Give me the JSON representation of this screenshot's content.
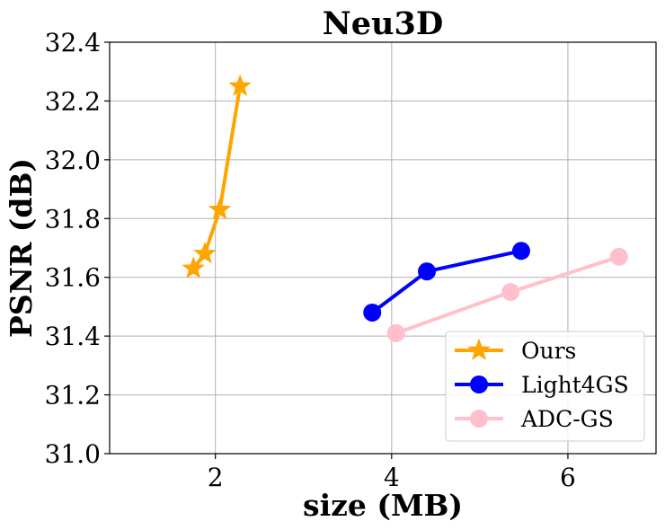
{
  "chart_data": {
    "type": "line",
    "title": "Neu3D",
    "xlabel": "size (MB)",
    "ylabel": "PSNR (dB)",
    "xlim": [
      0.8,
      7.0
    ],
    "ylim": [
      31.0,
      32.4
    ],
    "xticks": [
      2,
      4,
      6
    ],
    "xtick_labels": [
      "2",
      "4",
      "6"
    ],
    "yticks": [
      31.0,
      31.2,
      31.4,
      31.6,
      31.8,
      32.0,
      32.2,
      32.4
    ],
    "ytick_labels": [
      "31.0",
      "31.2",
      "31.4",
      "31.6",
      "31.8",
      "32.0",
      "32.2",
      "32.4"
    ],
    "grid": true,
    "legend_position": "lower-right",
    "series": [
      {
        "name": "Ours",
        "marker": "star",
        "color": "#FFA500",
        "x": [
          1.75,
          1.88,
          2.05,
          2.28
        ],
        "y": [
          31.63,
          31.68,
          31.83,
          32.25
        ]
      },
      {
        "name": "Light4GS",
        "marker": "circle",
        "color": "#0000FF",
        "x": [
          3.78,
          4.4,
          5.47
        ],
        "y": [
          31.48,
          31.62,
          31.69
        ]
      },
      {
        "name": "ADC-GS",
        "marker": "circle",
        "color": "#FFC0CB",
        "x": [
          4.05,
          5.35,
          6.58
        ],
        "y": [
          31.41,
          31.55,
          31.67
        ]
      }
    ]
  }
}
